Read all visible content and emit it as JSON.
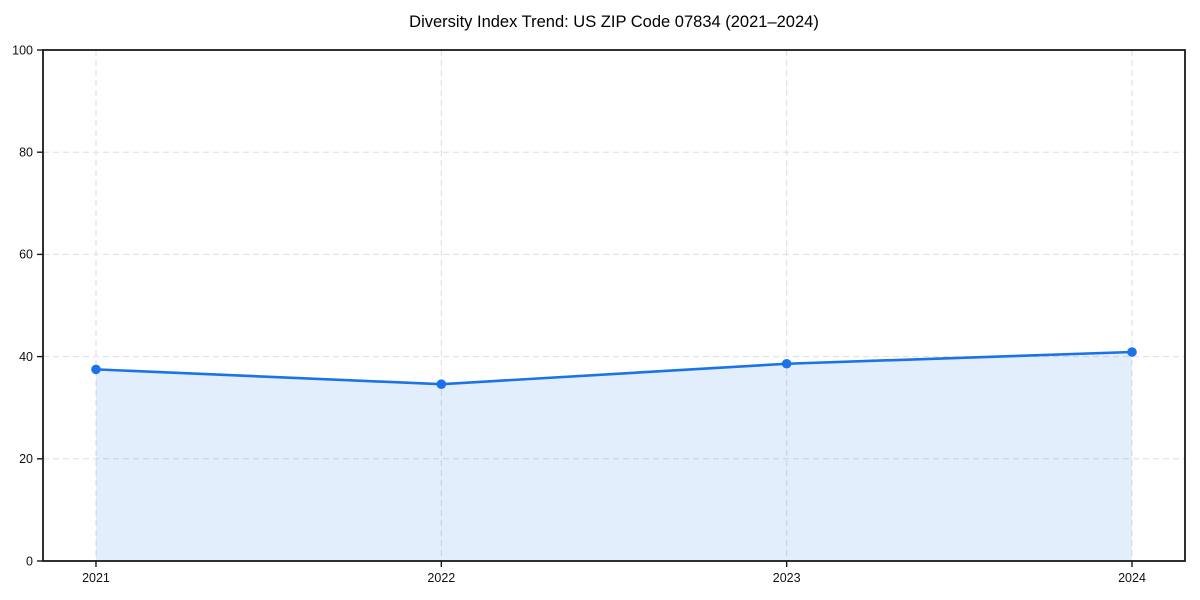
{
  "chart_data": {
    "type": "area",
    "title": "Diversity Index Trend: US ZIP Code 07834 (2021–2024)",
    "x": [
      "2021",
      "2022",
      "2023",
      "2024"
    ],
    "values": [
      37.5,
      34.6,
      38.6,
      40.9
    ],
    "series_name": "Diversity Index",
    "xlabel": "",
    "ylabel": "",
    "ylim": [
      0,
      100
    ],
    "yticks": [
      0,
      20,
      40,
      60,
      80,
      100
    ],
    "grid": "dashed, both axes",
    "legend": "none",
    "colors": {
      "line": "#1a73e8",
      "marker": "#1a73e8",
      "fill": "#1a73e8",
      "fill_opacity": 0.12,
      "grid": "#dddddd",
      "axis": "#1a1a1a",
      "tick_label": "#111111",
      "title": "#000000",
      "background": "#ffffff"
    }
  }
}
